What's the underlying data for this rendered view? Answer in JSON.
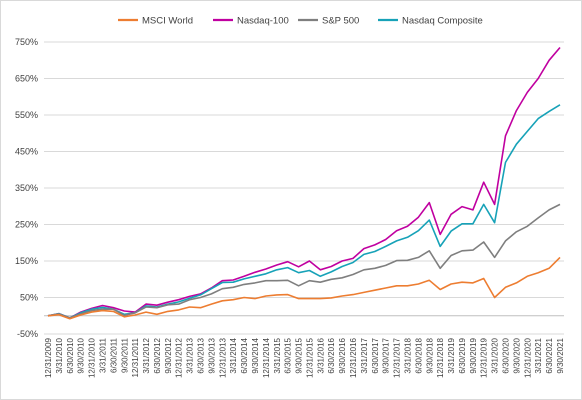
{
  "chart_data": {
    "type": "line",
    "title": "",
    "xlabel": "",
    "ylabel": "",
    "ylim": [
      -50,
      750
    ],
    "y_ticks": [
      "-50%",
      "50%",
      "150%",
      "250%",
      "350%",
      "450%",
      "550%",
      "650%",
      "750%"
    ],
    "y_tick_values": [
      -50,
      50,
      150,
      250,
      350,
      450,
      550,
      650,
      750
    ],
    "x_ticks": [
      "12/31/2009",
      "3/31/2010",
      "6/30/2010",
      "9/30/2010",
      "12/31/2010",
      "3/31/2011",
      "6/30/2011",
      "9/30/2011",
      "12/31/2011",
      "3/31/2012",
      "6/30/2012",
      "9/30/2012",
      "12/31/2012",
      "3/31/2013",
      "6/30/2013",
      "9/30/2013",
      "12/31/2013",
      "3/31/2014",
      "6/30/2014",
      "9/30/2014",
      "12/31/2014",
      "3/31/2015",
      "6/30/2015",
      "9/30/2015",
      "12/31/2015",
      "3/31/2016",
      "6/30/2016",
      "9/30/2016",
      "12/31/2016",
      "3/31/2017",
      "6/30/2017",
      "9/30/2017",
      "12/31/2017",
      "3/31/2018",
      "6/30/2018",
      "9/30/2018",
      "12/31/2018",
      "3/31/2019",
      "6/30/2019",
      "9/30/2019",
      "12/31/2019",
      "3/31/2020",
      "6/30/2020",
      "9/30/2020",
      "12/31/2020",
      "3/31/2021",
      "6/30/2021",
      "9/30/2021"
    ],
    "grid": "horizontal",
    "legend_position": "top",
    "x": [
      "12/31/2009",
      "3/31/2010",
      "6/30/2010",
      "9/30/2010",
      "12/31/2010",
      "3/31/2011",
      "6/30/2011",
      "9/30/2011",
      "12/31/2011",
      "3/31/2012",
      "6/30/2012",
      "9/30/2012",
      "12/31/2012",
      "3/31/2013",
      "6/30/2013",
      "9/30/2013",
      "12/31/2013",
      "3/31/2014",
      "6/30/2014",
      "9/30/2014",
      "12/31/2014",
      "3/31/2015",
      "6/30/2015",
      "9/30/2015",
      "12/31/2015",
      "3/31/2016",
      "6/30/2016",
      "9/30/2016",
      "12/31/2016",
      "3/31/2017",
      "6/30/2017",
      "9/30/2017",
      "12/31/2017",
      "3/31/2018",
      "6/30/2018",
      "9/30/2018",
      "12/31/2018",
      "3/31/2019",
      "6/30/2019",
      "9/30/2019",
      "12/31/2019",
      "3/31/2020",
      "6/30/2020",
      "9/30/2020",
      "12/31/2020",
      "3/31/2021",
      "6/30/2021",
      "9/30/2021"
    ],
    "series": [
      {
        "name": "MSCI World",
        "color": "#ED7D31",
        "values": [
          0,
          3,
          -8,
          2,
          10,
          14,
          12,
          -3,
          2,
          10,
          4,
          12,
          16,
          24,
          22,
          32,
          41,
          44,
          50,
          47,
          54,
          57,
          58,
          47,
          47,
          47,
          49,
          54,
          58,
          64,
          70,
          76,
          82,
          82,
          87,
          97,
          72,
          87,
          92,
          90,
          102,
          50,
          78,
          90,
          108,
          118,
          130,
          160
        ]
      },
      {
        "name": "Nasdaq-100",
        "color": "#C000A0",
        "values": [
          0,
          6,
          -6,
          10,
          20,
          28,
          22,
          13,
          10,
          32,
          29,
          37,
          44,
          53,
          60,
          76,
          96,
          98,
          108,
          119,
          128,
          139,
          148,
          134,
          150,
          126,
          135,
          150,
          157,
          184,
          194,
          209,
          233,
          245,
          270,
          310,
          223,
          278,
          299,
          290,
          366,
          305,
          493,
          562,
          612,
          650,
          700,
          735
        ]
      },
      {
        "name": "S&P 500",
        "color": "#7F7F7F",
        "values": [
          0,
          5,
          -6,
          5,
          14,
          18,
          18,
          1,
          8,
          24,
          22,
          30,
          32,
          44,
          50,
          60,
          74,
          78,
          86,
          90,
          96,
          96,
          97,
          82,
          96,
          92,
          100,
          104,
          113,
          126,
          130,
          138,
          151,
          152,
          160,
          178,
          130,
          165,
          178,
          180,
          202,
          160,
          205,
          230,
          245,
          268,
          290,
          305
        ]
      },
      {
        "name": "Nasdaq Composite",
        "color": "#17A2B8",
        "values": [
          0,
          6,
          -6,
          8,
          18,
          23,
          18,
          4,
          8,
          27,
          24,
          32,
          38,
          48,
          57,
          74,
          91,
          92,
          101,
          108,
          115,
          126,
          132,
          118,
          124,
          108,
          120,
          135,
          146,
          168,
          176,
          190,
          205,
          215,
          233,
          262,
          190,
          232,
          252,
          252,
          305,
          255,
          420,
          470,
          505,
          540,
          560,
          578
        ]
      }
    ]
  }
}
